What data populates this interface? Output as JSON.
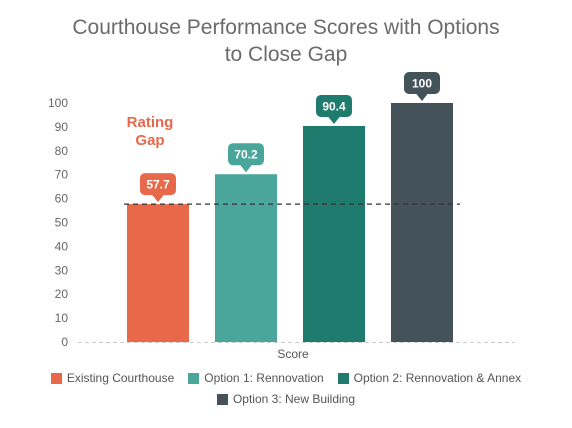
{
  "title_line1": "Courthouse Performance Scores with Options",
  "title_line2": "to Close Gap",
  "gap_annotation": [
    "Rating",
    "Gap"
  ],
  "colors": {
    "axis_text": "#666666",
    "annotation": "#e8694a",
    "threshold_line": "#333333",
    "baseline": "#cccccc"
  },
  "chart_data": {
    "type": "bar",
    "title": "Courthouse Performance Scores with Options to Close Gap",
    "xlabel": "Score",
    "ylabel": "",
    "ylim": [
      0,
      100
    ],
    "yticks": [
      0,
      10,
      20,
      30,
      40,
      50,
      60,
      70,
      80,
      90,
      100
    ],
    "categories": [
      "Score"
    ],
    "series": [
      {
        "name": "Existing Courthouse",
        "values": [
          57.7
        ],
        "label": "57.7",
        "color": "#e8694a"
      },
      {
        "name": "Option 1: Rennovation",
        "values": [
          70.2
        ],
        "label": "70.2",
        "color": "#4aa59a"
      },
      {
        "name": "Option 2: Rennovation & Annex",
        "values": [
          90.4
        ],
        "label": "90.4",
        "color": "#1f7b6d"
      },
      {
        "name": "Option 3: New Building",
        "values": [
          100
        ],
        "label": "100",
        "color": "#44525a"
      }
    ],
    "threshold": 57.7,
    "legend_position": "bottom"
  }
}
